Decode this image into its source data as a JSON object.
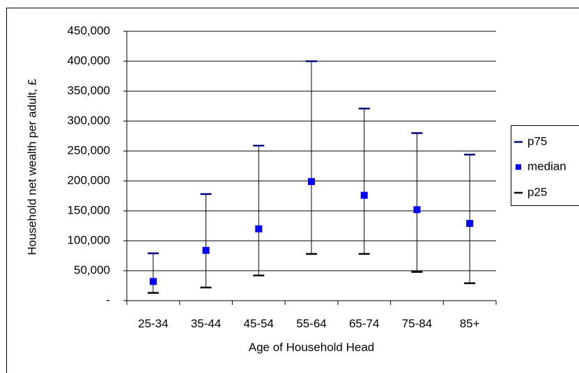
{
  "chart_data": {
    "type": "highlow",
    "x_label": "Age of Household Head",
    "y_label": "Household net wealth per adult, £",
    "categories": [
      "25-34",
      "35-44",
      "45-54",
      "55-64",
      "65-74",
      "75-84",
      "85+"
    ],
    "series": [
      {
        "name": "p75",
        "color": "#000080",
        "values": [
          79000,
          178000,
          259000,
          400000,
          321000,
          280000,
          244000
        ]
      },
      {
        "name": "median",
        "color": "#0000ff",
        "values": [
          32000,
          84000,
          120000,
          199000,
          176000,
          152000,
          129000
        ]
      },
      {
        "name": "p25",
        "color": "#000000",
        "values": [
          13000,
          22000,
          42000,
          78000,
          78000,
          48000,
          29000
        ]
      }
    ],
    "ylim": [
      0,
      450000
    ],
    "yticks": [
      {
        "value": 0,
        "label": "-"
      },
      {
        "value": 50000,
        "label": "50,000"
      },
      {
        "value": 100000,
        "label": "100,000"
      },
      {
        "value": 150000,
        "label": "150,000"
      },
      {
        "value": 200000,
        "label": "200,000"
      },
      {
        "value": 250000,
        "label": "250,000"
      },
      {
        "value": 300000,
        "label": "300,000"
      },
      {
        "value": 350000,
        "label": "350,000"
      },
      {
        "value": 400000,
        "label": "400,000"
      },
      {
        "value": 450000,
        "label": "450,000"
      }
    ],
    "grid": true
  }
}
